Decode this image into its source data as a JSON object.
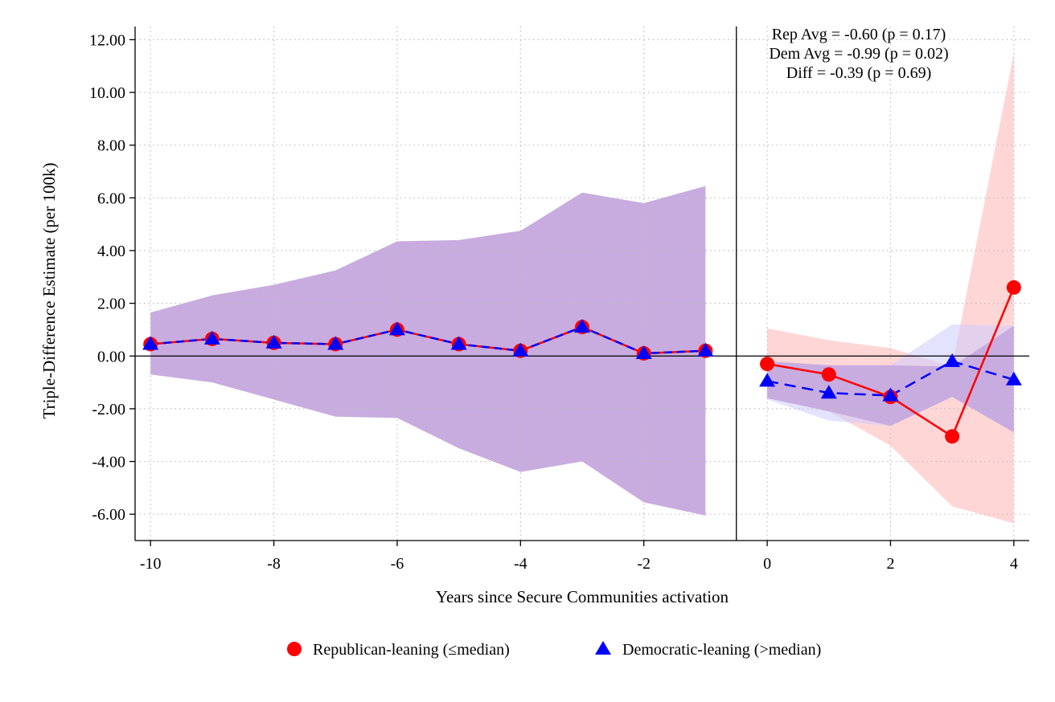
{
  "chart_data": {
    "type": "line",
    "ylabel": "Triple-Difference Estimate (per 100k)",
    "xlabel": "Years since Secure Communities activation",
    "xlim": [
      -10.25,
      4.25
    ],
    "ylim": [
      -7,
      12.5
    ],
    "x_ticks": [
      -10,
      -8,
      -6,
      -4,
      -2,
      0,
      2,
      4
    ],
    "x_tick_labels": [
      "-10",
      "-8",
      "-6",
      "-4",
      "-2",
      "0",
      "2",
      "4"
    ],
    "y_ticks": [
      12,
      10,
      8,
      6,
      4,
      2,
      0,
      -2,
      -4,
      -6
    ],
    "y_tick_labels": [
      "12.00",
      "10.00",
      "8.00",
      "6.00",
      "4.00",
      "2.00",
      "0.00",
      "-2.00",
      "-4.00",
      "-6.00"
    ],
    "grid": true,
    "reference_lines": {
      "y": 0,
      "x": -0.5
    },
    "annotations": [
      "Rep Avg = -0.60 (p = 0.17)",
      "Dem Avg = -0.99 (p = 0.02)",
      "Diff = -0.39 (p = 0.69)"
    ],
    "legend_position": "bottom",
    "series": [
      {
        "name": "Republican-leaning (≤median)",
        "color": "#ff0000",
        "marker": "circle",
        "line_style": "solid",
        "pre": {
          "x": [
            -10,
            -9,
            -8,
            -7,
            -6,
            -5,
            -4,
            -3,
            -2,
            -1
          ],
          "y": [
            0.45,
            0.65,
            0.5,
            0.45,
            1.0,
            0.45,
            0.2,
            1.1,
            0.1,
            0.2
          ],
          "ci_low": [
            -0.7,
            -1.0,
            -1.65,
            -2.3,
            -2.35,
            -3.5,
            -4.4,
            -4.0,
            -5.55,
            -6.05
          ],
          "ci_high": [
            1.65,
            2.3,
            2.7,
            3.25,
            4.35,
            4.4,
            4.75,
            6.2,
            5.8,
            6.45
          ]
        },
        "post": {
          "x": [
            0,
            1,
            2,
            3,
            4
          ],
          "y": [
            -0.3,
            -0.7,
            -1.55,
            -3.05,
            2.6
          ],
          "ci_low": [
            -1.6,
            -2.1,
            -3.4,
            -5.7,
            -6.35
          ],
          "ci_high": [
            1.05,
            0.6,
            0.3,
            -0.4,
            11.5
          ]
        }
      },
      {
        "name": "Democratic-leaning (>median)",
        "color": "#0000ff",
        "marker": "triangle",
        "line_style": "dashed",
        "pre": {
          "x": [
            -10,
            -9,
            -8,
            -7,
            -6,
            -5,
            -4,
            -3,
            -2,
            -1
          ],
          "y": [
            0.45,
            0.65,
            0.5,
            0.45,
            1.0,
            0.45,
            0.2,
            1.1,
            0.1,
            0.2
          ],
          "ci_low": [
            -0.7,
            -1.0,
            -1.65,
            -2.3,
            -2.35,
            -3.5,
            -4.4,
            -4.0,
            -5.55,
            -6.05
          ],
          "ci_high": [
            1.65,
            2.3,
            2.7,
            3.25,
            4.35,
            4.4,
            4.75,
            6.2,
            5.8,
            6.45
          ]
        },
        "post": {
          "x": [
            0,
            1,
            2,
            3,
            4
          ],
          "y": [
            -0.95,
            -1.4,
            -1.5,
            -0.2,
            -0.9
          ],
          "ci_low": [
            -1.65,
            -2.45,
            -2.65,
            -1.55,
            -2.9
          ],
          "ci_high": [
            -0.2,
            -0.35,
            -0.35,
            1.2,
            1.15
          ]
        }
      }
    ],
    "pre_band_color": "#c8acdf",
    "rep_band_color": "#ffd2d2",
    "dem_band_color": "#ccccff"
  }
}
